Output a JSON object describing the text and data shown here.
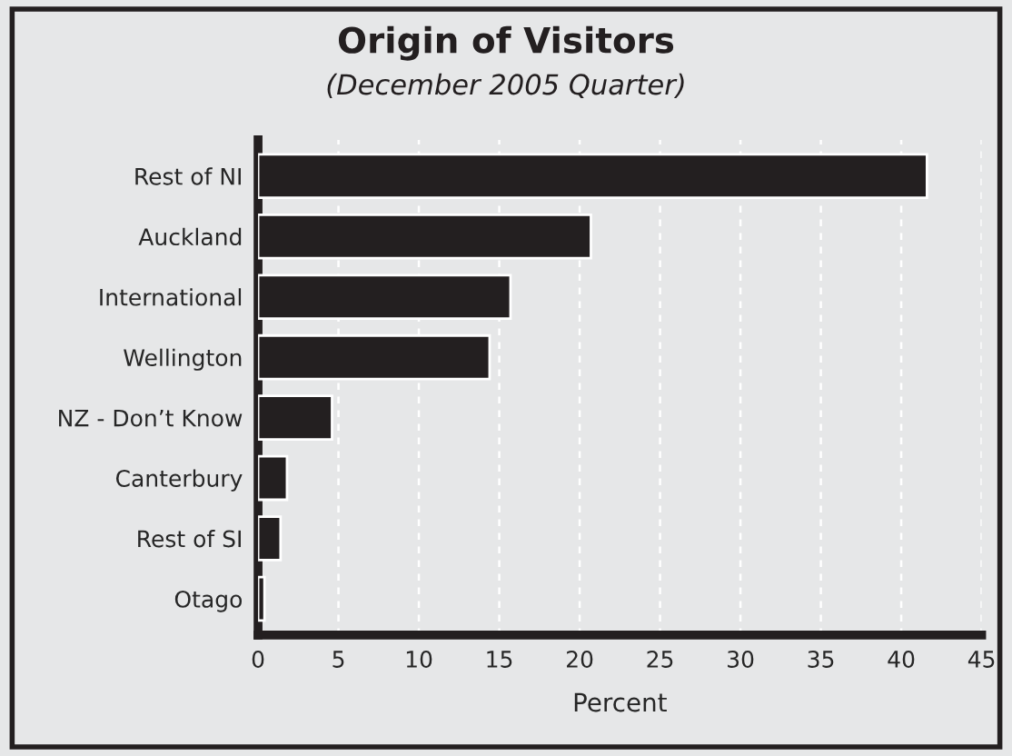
{
  "chart_data": {
    "type": "bar",
    "orientation": "horizontal",
    "title": "Origin of Visitors",
    "subtitle": "(December 2005 Quarter)",
    "xlabel": "Percent",
    "categories": [
      "Rest of NI",
      "Auckland",
      "International",
      "Wellington",
      "NZ - Don’t Know",
      "Canterbury",
      "Rest of SI",
      "Otago"
    ],
    "values": [
      41.6,
      20.7,
      15.7,
      14.4,
      4.6,
      1.8,
      1.4,
      0.4
    ],
    "color": "#231f20",
    "xlim": [
      0,
      45
    ],
    "xticks": [
      0,
      5,
      10,
      15,
      20,
      25,
      30,
      35,
      40,
      45
    ],
    "grid": "x"
  }
}
